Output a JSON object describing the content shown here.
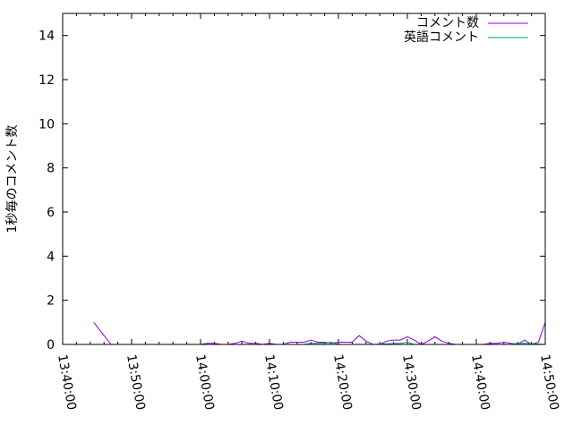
{
  "chart_data": {
    "type": "line",
    "title": "",
    "xlabel": "",
    "ylabel": "1秒毎のコメント数",
    "xlim": [
      "13:40:00",
      "14:50:00"
    ],
    "ylim": [
      0,
      15
    ],
    "x_ticks": [
      "13:40:00",
      "13:50:00",
      "14:00:00",
      "14:10:00",
      "14:20:00",
      "14:30:00",
      "14:40:00",
      "14:50:00"
    ],
    "y_ticks": [
      "0",
      "2",
      "4",
      "6",
      "8",
      "10",
      "12",
      "14"
    ],
    "grid": false,
    "legend": "top-right",
    "series": [
      {
        "name": "コメント数",
        "color": "#9400d3",
        "segments": [
          {
            "x": [
              "13:44:30",
              "13:47:00"
            ],
            "values": [
              1.0,
              0
            ]
          },
          {
            "x": [
              "14:00:00",
              "14:01:00",
              "14:02:00",
              "14:03:00",
              "14:04:00",
              "14:05:00",
              "14:06:00",
              "14:07:00",
              "14:08:00",
              "14:09:00",
              "14:10:00",
              "14:11:00",
              "14:12:00",
              "14:13:00",
              "14:14:00",
              "14:15:00",
              "14:16:00",
              "14:17:00",
              "14:18:00",
              "14:19:00",
              "14:20:00",
              "14:21:00",
              "14:22:00",
              "14:23:00",
              "14:24:00",
              "14:25:00",
              "14:26:00",
              "14:27:00",
              "14:28:00",
              "14:29:00",
              "14:30:00",
              "14:31:00",
              "14:32:00",
              "14:33:00",
              "14:34:00",
              "14:35:00",
              "14:36:00",
              "14:37:00",
              "14:38:00",
              "14:39:00",
              "14:40:00",
              "14:41:00",
              "14:42:00",
              "14:43:00",
              "14:44:00",
              "14:45:00",
              "14:46:00",
              "14:47:00",
              "14:48:00",
              "14:49:00",
              "14:50:00"
            ],
            "values": [
              0,
              0.05,
              0.05,
              0,
              0,
              0.05,
              0.15,
              0.05,
              0.05,
              0,
              0.05,
              0,
              0,
              0.1,
              0.1,
              0.1,
              0.2,
              0.1,
              0.1,
              0.05,
              0.1,
              0.1,
              0.1,
              0.4,
              0.15,
              0,
              0,
              0.15,
              0.2,
              0.2,
              0.35,
              0.2,
              0,
              0.15,
              0.35,
              0.15,
              0.05,
              0,
              0,
              0,
              0,
              0,
              0.05,
              0.05,
              0.1,
              0.05,
              0,
              0.2,
              0,
              0.1,
              1.0
            ]
          }
        ]
      },
      {
        "name": "英語コメント",
        "color": "#009e73",
        "segments": [
          {
            "x": [
              "14:00:00",
              "14:05:00",
              "14:10:00",
              "14:15:00",
              "14:16:00",
              "14:17:00",
              "14:18:00",
              "14:19:00",
              "14:20:00",
              "14:25:00",
              "14:29:00",
              "14:30:00",
              "14:31:00",
              "14:35:00",
              "14:40:00",
              "14:45:00",
              "14:46:00",
              "14:47:00",
              "14:50:00"
            ],
            "values": [
              0,
              0,
              0,
              0,
              0.05,
              0.05,
              0.05,
              0.1,
              0,
              0,
              0.05,
              0.1,
              0,
              0,
              0,
              0,
              0.05,
              0.05,
              0
            ]
          }
        ]
      }
    ]
  }
}
